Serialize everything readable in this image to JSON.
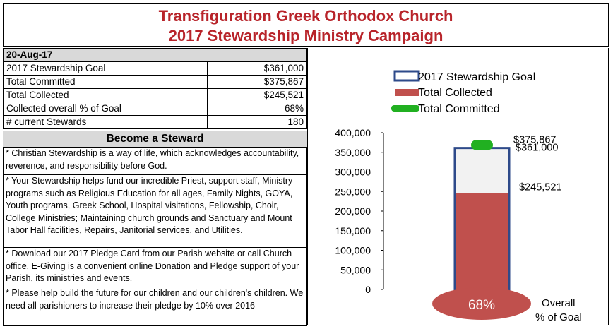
{
  "header": {
    "title_line1": "Transfiguration Greek Orthodox Church",
    "title_line2": "2017 Stewardship Ministry Campaign"
  },
  "stats": {
    "date": "20-Aug-17",
    "rows": [
      {
        "label": "2017 Stewardship Goal",
        "value": "$361,000"
      },
      {
        "label": "Total Committed",
        "value": "$375,867"
      },
      {
        "label": "Total Collected",
        "value": "$245,521"
      },
      {
        "label": "Collected overall % of Goal",
        "value": "68%"
      },
      {
        "label": "# current Stewards",
        "value": "180"
      }
    ]
  },
  "become": {
    "heading": "Become a Steward",
    "notes": [
      "* Christian Stewardship is a way of life, which acknowledges accountability, reverence, and responsibility before God.",
      "* Your Stewardship helps fund our incredible Priest, support staff, Ministry programs such as Religious Education for all ages, Family Nights, GOYA, Youth programs, Greek School, Hospital visitations, Fellowship, Choir, College Ministries; Maintaining church grounds and Sanctuary and Mount Tabor Hall facilities, Repairs, Janitorial services, and Utilities.",
      "* Download our 2017 Pledge Card from our Parish website or call Church office.  E-Giving is a convenient online Donation and Pledge support of your Parish, its ministries and events.",
      "* Please help build the future for our children and our children's children. We need all parishioners to increase their pledge by 10% over 2016"
    ]
  },
  "chart_data": {
    "type": "bar",
    "ylim": [
      0,
      400000
    ],
    "yticks": [
      0,
      50000,
      100000,
      150000,
      200000,
      250000,
      300000,
      350000,
      400000
    ],
    "ytick_labels": [
      "0",
      "50,000",
      "100,000",
      "150,000",
      "200,000",
      "250,000",
      "300,000",
      "350,000",
      "400,000"
    ],
    "series": [
      {
        "name": "2017 Stewardship Goal",
        "value": 361000,
        "label": "$361,000",
        "color": "#2e4a8a"
      },
      {
        "name": "Total Collected",
        "value": 245521,
        "label": "$245,521",
        "color": "#c0504d"
      },
      {
        "name": "Total Committed",
        "value": 375867,
        "label": "$375,867",
        "color": "#21b021"
      }
    ],
    "percent_label": "68%",
    "percent_caption_line1": "Overall",
    "percent_caption_line2": "% of Goal",
    "legend_position": "top"
  }
}
